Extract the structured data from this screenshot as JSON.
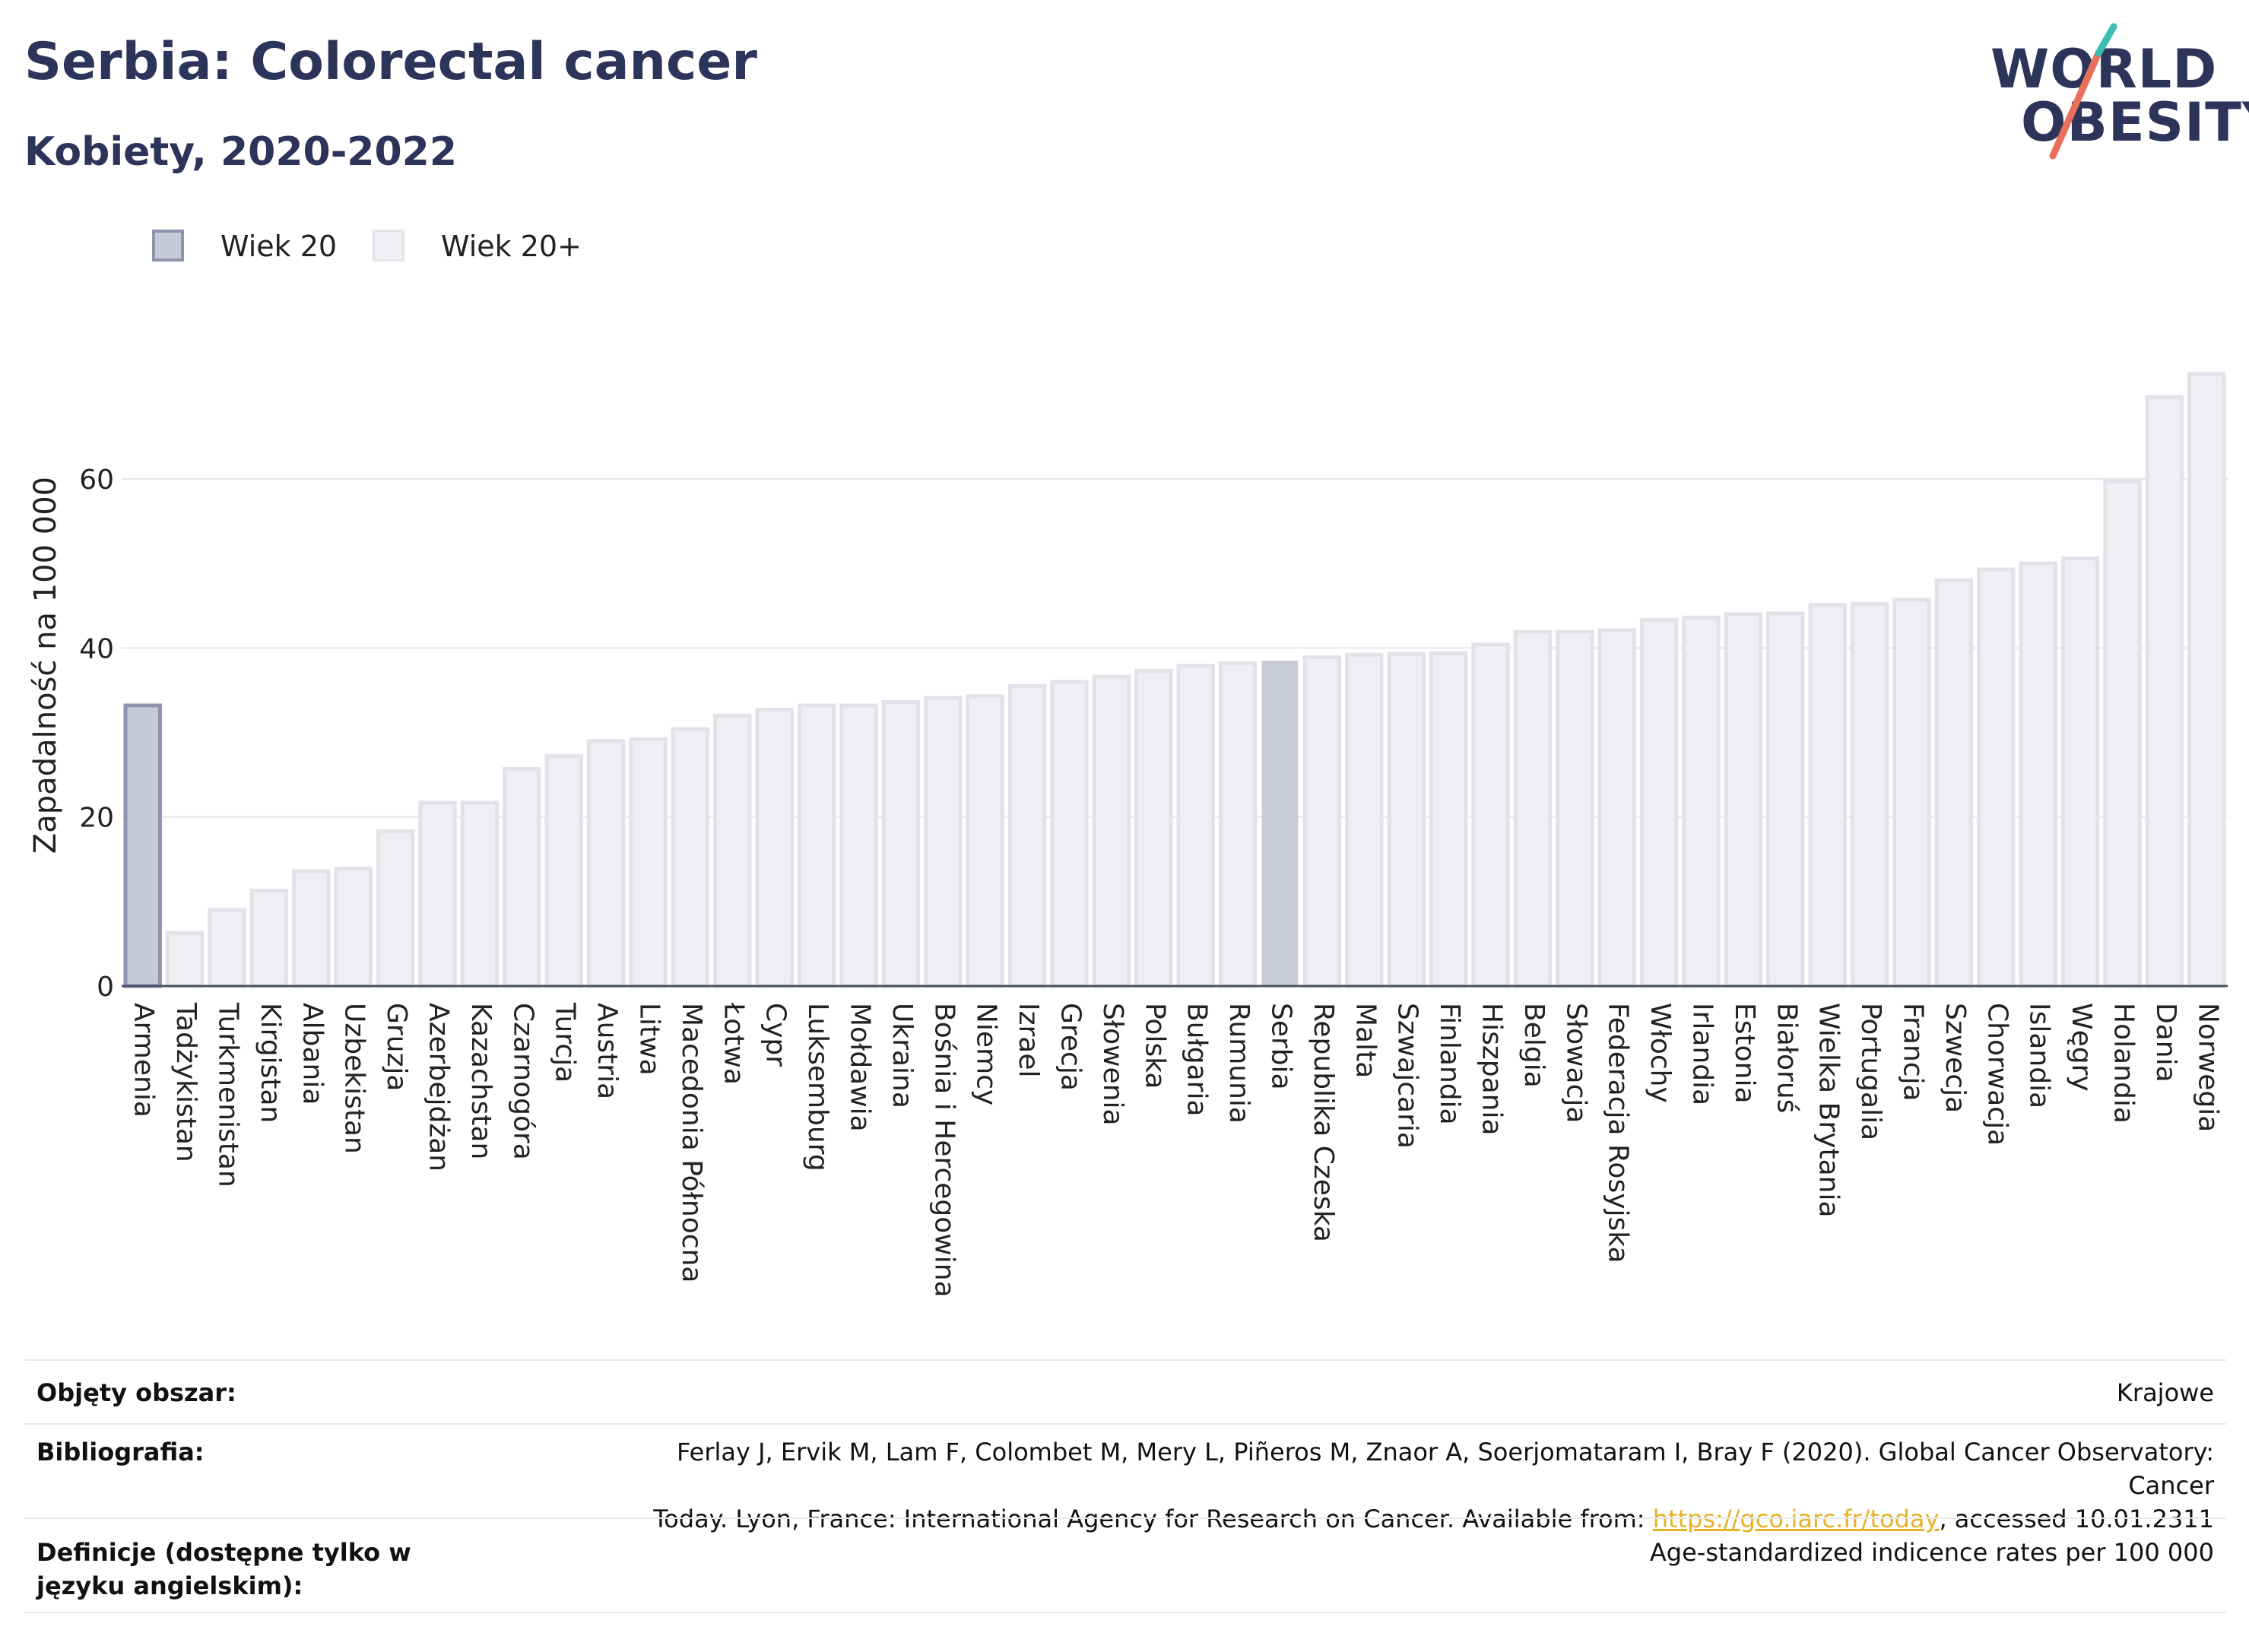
{
  "header": {
    "title": "Serbia: Colorectal cancer",
    "subtitle": "Kobiety, 2020-2022"
  },
  "logo": {
    "line1": "WORLD",
    "line2": "OBESITY"
  },
  "legend": {
    "items": [
      {
        "label": "Wiek 20",
        "color": "#c6c9d6",
        "border": "#8e94ab"
      },
      {
        "label": "Wiek 20+",
        "color": "#eeeff3",
        "border": "#e3e4ea"
      }
    ]
  },
  "colors": {
    "highlight_fill": "#c6c9d6",
    "highlight_border": "#8e94ab",
    "serbia_fill": "#c8cad6",
    "bar_fill": "#eeeff3",
    "bar_border": "#e2e3e9"
  },
  "chart_data": {
    "type": "bar",
    "ylabel": "Zapadalność na 100 000",
    "ylim": [
      0,
      75
    ],
    "yticks": [
      0,
      20,
      40,
      60
    ],
    "grid": true,
    "categories": [
      "Armenia",
      "Tadżykistan",
      "Turkmenistan",
      "Kirgistan",
      "Albania",
      "Uzbekistan",
      "Gruzja",
      "Azerbejdżan",
      "Kazachstan",
      "Czarnogóra",
      "Turcja",
      "Austria",
      "Litwa",
      "Macedonia Północna",
      "Łotwa",
      "Cypr",
      "Luksemburg",
      "Mołdawia",
      "Ukraina",
      "Bośnia i Hercegowina",
      "Niemcy",
      "Izrael",
      "Grecja",
      "Słowenia",
      "Polska",
      "Bułgaria",
      "Rumunia",
      "Serbia",
      "Republika Czeska",
      "Malta",
      "Szwajcaria",
      "Finlandia",
      "Hiszpania",
      "Belgia",
      "Słowacja",
      "Federacja Rosyjska",
      "Włochy",
      "Irlandia",
      "Estonia",
      "Białoruś",
      "Wielka Brytania",
      "Portugalia",
      "Francja",
      "Szwecja",
      "Chorwacja",
      "Islandia",
      "Węgry",
      "Holandia",
      "Dania",
      "Norwegia"
    ],
    "values": [
      33.2,
      6.3,
      9.0,
      11.3,
      13.6,
      13.9,
      18.3,
      21.7,
      21.7,
      25.7,
      27.2,
      29.0,
      29.2,
      30.4,
      32.0,
      32.7,
      33.2,
      33.2,
      33.6,
      34.1,
      34.3,
      35.5,
      36.0,
      36.6,
      37.3,
      37.9,
      38.2,
      38.4,
      38.9,
      39.2,
      39.3,
      39.4,
      40.4,
      41.9,
      41.9,
      42.1,
      43.3,
      43.6,
      44.0,
      44.1,
      45.1,
      45.2,
      45.7,
      48.0,
      49.3,
      50.0,
      50.6,
      59.7,
      69.7,
      72.4
    ],
    "series_of_bar": [
      "Wiek 20",
      "Wiek 20+",
      "Wiek 20+",
      "Wiek 20+",
      "Wiek 20+",
      "Wiek 20+",
      "Wiek 20+",
      "Wiek 20+",
      "Wiek 20+",
      "Wiek 20+",
      "Wiek 20+",
      "Wiek 20+",
      "Wiek 20+",
      "Wiek 20+",
      "Wiek 20+",
      "Wiek 20+",
      "Wiek 20+",
      "Wiek 20+",
      "Wiek 20+",
      "Wiek 20+",
      "Wiek 20+",
      "Wiek 20+",
      "Wiek 20+",
      "Wiek 20+",
      "Wiek 20+",
      "Wiek 20+",
      "Wiek 20+",
      "Wiek 20+",
      "Wiek 20+",
      "Wiek 20+",
      "Wiek 20+",
      "Wiek 20+",
      "Wiek 20+",
      "Wiek 20+",
      "Wiek 20+",
      "Wiek 20+",
      "Wiek 20+",
      "Wiek 20+",
      "Wiek 20+",
      "Wiek 20+",
      "Wiek 20+",
      "Wiek 20+",
      "Wiek 20+",
      "Wiek 20+",
      "Wiek 20+",
      "Wiek 20+",
      "Wiek 20+",
      "Wiek 20+",
      "Wiek 20+",
      "Wiek 20+"
    ],
    "highlight": "Serbia"
  },
  "meta": {
    "rows": [
      {
        "key": "Objęty obszar:",
        "value": "Krajowe"
      },
      {
        "key": "Bibliografia:",
        "value_line1": "Ferlay J, Ervik M, Lam F, Colombet M, Mery L, Piñeros M, Znaor A, Soerjomataram I, Bray F (2020). Global Cancer Observatory: Cancer",
        "value_line2_pre": "Today. Lyon, France: International Agency for Research on Cancer. Available from: ",
        "value_link": "https://gco.iarc.fr/today",
        "value_line2_post": ", accessed 10.01.2311"
      },
      {
        "key": "Definicje (dostępne tylko w języku angielskim):",
        "value": "Age-standardized indicence rates per 100 000"
      }
    ]
  }
}
